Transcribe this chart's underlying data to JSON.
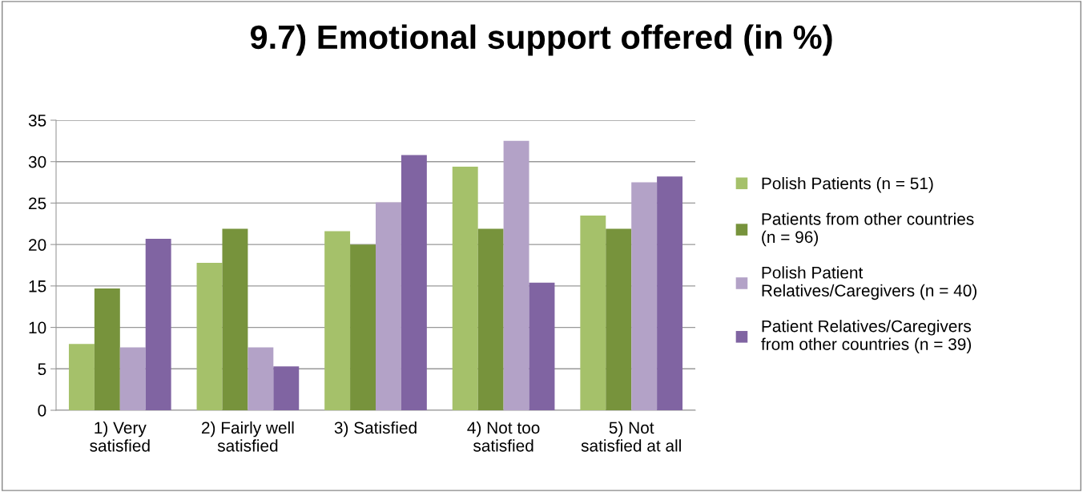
{
  "chart_data": {
    "type": "bar",
    "title": "9.7) Emotional support offered (in %)",
    "categories": [
      "1) Very\nsatisfied",
      "2) Fairly well\nsatisfied",
      "3) Satisfied",
      "4) Not too\nsatisfied",
      "5) Not\nsatisfied at all"
    ],
    "series": [
      {
        "name": "Polish Patients (n = 51)",
        "color": "#a5c16a",
        "values": [
          8.0,
          17.8,
          21.6,
          29.4,
          23.5
        ]
      },
      {
        "name": "Patients from other countries\n(n = 96)",
        "color": "#77933c",
        "values": [
          14.7,
          21.9,
          20.0,
          21.9,
          21.9
        ]
      },
      {
        "name": "Polish Patient\nRelatives/Caregivers (n = 40)",
        "color": "#b3a2c7",
        "values": [
          7.6,
          7.6,
          25.1,
          32.5,
          27.5
        ]
      },
      {
        "name": "Patient Relatives/Caregivers\nfrom other countries (n = 39)",
        "color": "#8064a2",
        "values": [
          20.7,
          5.3,
          30.8,
          15.4,
          28.2
        ]
      }
    ],
    "ylim": [
      0,
      35
    ],
    "yticks": [
      0,
      5,
      10,
      15,
      20,
      25,
      30,
      35
    ],
    "grid": "y",
    "legend": "right"
  }
}
